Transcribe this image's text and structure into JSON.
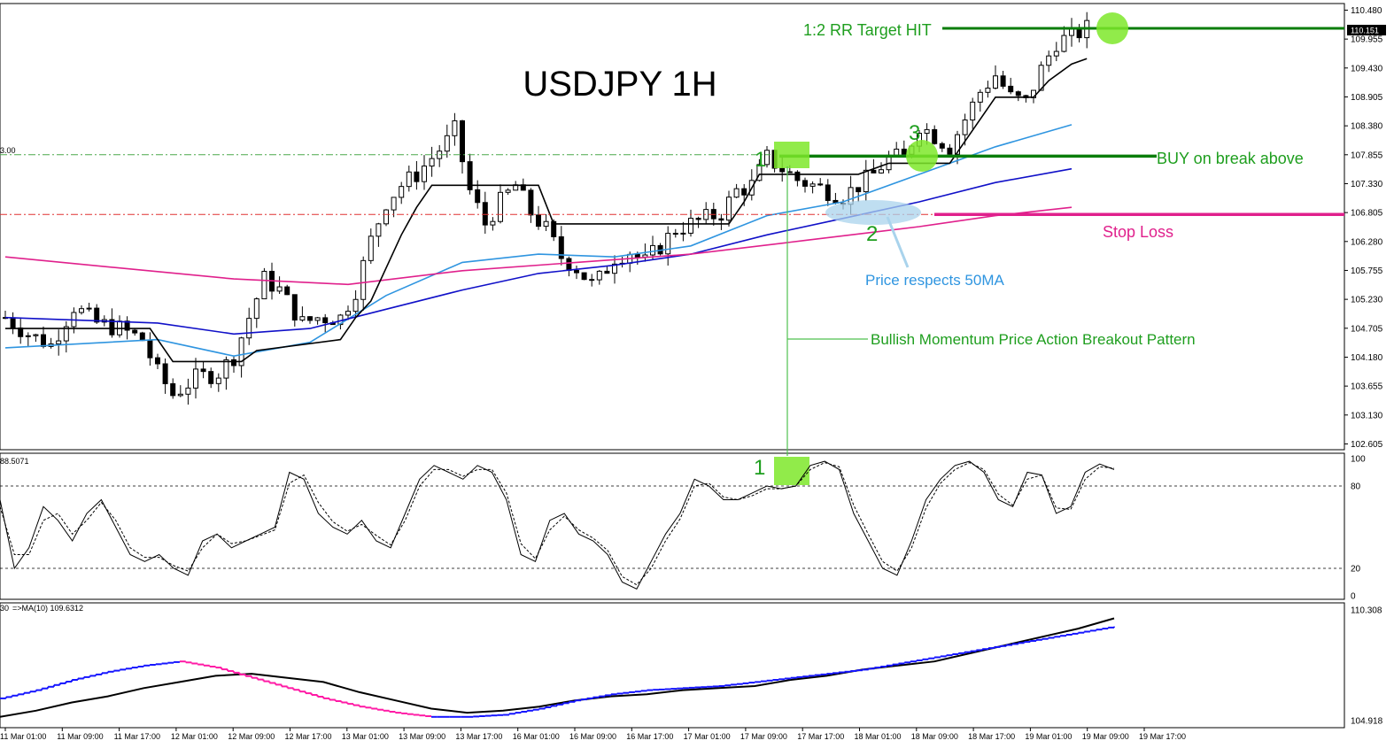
{
  "colors": {
    "background": "#ffffff",
    "candle": "#000000",
    "ma_fast": "#2f95e0",
    "ma_mid": "#1010c8",
    "ma_slow": "#e0208c",
    "level_green": "#0a7d0a",
    "stop_loss": "#e0208c",
    "highlight": "#7ee82a",
    "annotation_green": "#1e9e1e",
    "annotation_blue": "#2f95e0",
    "renko_up": "#1515ff",
    "renko_down": "#ff1aa5"
  },
  "header": {
    "title": "USDJPY 1H"
  },
  "annotations": {
    "target": "1:2 RR Target HIT",
    "buy": "BUY on break above",
    "stop": "Stop Loss",
    "ma_note": "Price respects 50MA",
    "pattern": "Bullish Momentum Price Action Breakout Pattern",
    "point1": "1",
    "point2": "2",
    "point3": "3",
    "osc_point1": "1",
    "left_level_fragment": "3.00",
    "osc_value": "88.5071",
    "lower_label_a": "30",
    "lower_label_b": "=>MA(10) 109.6312"
  },
  "current_price": "110.151",
  "chart_data": [
    {
      "type": "candlestick",
      "title": "USDJPY 1H",
      "y_axis_ticks": [
        "110.480",
        "109.955",
        "109.430",
        "108.905",
        "108.380",
        "107.855",
        "107.330",
        "106.805",
        "106.280",
        "105.755",
        "105.230",
        "104.705",
        "104.180",
        "103.655",
        "103.130",
        "102.605"
      ],
      "ylim": [
        102.5,
        110.6
      ],
      "x_axis_ticks": [
        "11 Mar 01:00",
        "11 Mar 09:00",
        "11 Mar 17:00",
        "12 Mar 01:00",
        "12 Mar 09:00",
        "12 Mar 17:00",
        "13 Mar 01:00",
        "13 Mar 09:00",
        "13 Mar 17:00",
        "16 Mar 01:00",
        "16 Mar 09:00",
        "16 Mar 17:00",
        "17 Mar 01:00",
        "17 Mar 09:00",
        "17 Mar 17:00",
        "18 Mar 01:00",
        "18 Mar 09:00",
        "18 Mar 17:00",
        "19 Mar 01:00",
        "19 Mar 09:00",
        "19 Mar 17:00"
      ],
      "levels": {
        "target": 110.151,
        "buy_break": 107.83,
        "stop_loss": 106.77,
        "left_green_dashdot": 107.855,
        "left_red_dashdot": 106.77
      },
      "close_path": [
        [
          0,
          104.9
        ],
        [
          3,
          104.6
        ],
        [
          6,
          104.4
        ],
        [
          9,
          105.1
        ],
        [
          12,
          104.8
        ],
        [
          15,
          104.7
        ],
        [
          18,
          104.5
        ],
        [
          20,
          103.9
        ],
        [
          22,
          103.5
        ],
        [
          25,
          103.8
        ],
        [
          28,
          103.9
        ],
        [
          30,
          104.2
        ],
        [
          32,
          104.9
        ],
        [
          34,
          105.6
        ],
        [
          36,
          105.4
        ],
        [
          39,
          104.8
        ],
        [
          41,
          104.9
        ],
        [
          44,
          104.9
        ],
        [
          46,
          105.4
        ],
        [
          48,
          106.3
        ],
        [
          50,
          107.0
        ],
        [
          52,
          107.3
        ],
        [
          54,
          107.5
        ],
        [
          56,
          107.8
        ],
        [
          58,
          108.1
        ],
        [
          59,
          108.3
        ],
        [
          61,
          107.2
        ],
        [
          63,
          106.6
        ],
        [
          65,
          107.0
        ],
        [
          67,
          107.3
        ],
        [
          69,
          106.8
        ],
        [
          71,
          106.5
        ],
        [
          73,
          106.0
        ],
        [
          75,
          105.8
        ],
        [
          77,
          105.5
        ],
        [
          78,
          105.6
        ],
        [
          80,
          106.0
        ],
        [
          82,
          106.1
        ],
        [
          84,
          105.9
        ],
        [
          86,
          106.2
        ],
        [
          88,
          106.5
        ],
        [
          90,
          106.6
        ],
        [
          92,
          106.7
        ],
        [
          94,
          106.8
        ],
        [
          96,
          107.2
        ],
        [
          98,
          107.3
        ],
        [
          100,
          107.8
        ],
        [
          102,
          107.6
        ],
        [
          104,
          107.4
        ],
        [
          106,
          107.3
        ],
        [
          108,
          107.2
        ],
        [
          110,
          107.1
        ],
        [
          112,
          107.3
        ],
        [
          114,
          107.5
        ],
        [
          116,
          107.8
        ],
        [
          118,
          107.8
        ],
        [
          120,
          108.4
        ],
        [
          122,
          108.2
        ],
        [
          124,
          108.0
        ],
        [
          126,
          108.5
        ],
        [
          128,
          109.0
        ],
        [
          130,
          109.3
        ],
        [
          132,
          108.9
        ],
        [
          134,
          108.8
        ],
        [
          136,
          109.4
        ],
        [
          138,
          109.9
        ],
        [
          140,
          110.0
        ],
        [
          142,
          110.15
        ]
      ],
      "series": [
        {
          "name": "",
          "color_key": "ma_fast",
          "points": [
            [
              0,
              104.35
            ],
            [
              20,
              104.5
            ],
            [
              30,
              104.2
            ],
            [
              40,
              104.45
            ],
            [
              50,
              105.3
            ],
            [
              60,
              105.9
            ],
            [
              70,
              106.05
            ],
            [
              80,
              106.0
            ],
            [
              90,
              106.2
            ],
            [
              100,
              106.75
            ],
            [
              110,
              107.0
            ],
            [
              120,
              107.5
            ],
            [
              130,
              108.0
            ],
            [
              140,
              108.4
            ]
          ]
        },
        {
          "name": "",
          "color_key": "ma_mid",
          "points": [
            [
              0,
              104.9
            ],
            [
              20,
              104.8
            ],
            [
              30,
              104.6
            ],
            [
              40,
              104.7
            ],
            [
              50,
              105.05
            ],
            [
              60,
              105.4
            ],
            [
              70,
              105.7
            ],
            [
              80,
              105.85
            ],
            [
              90,
              106.05
            ],
            [
              100,
              106.4
            ],
            [
              110,
              106.7
            ],
            [
              120,
              107.0
            ],
            [
              130,
              107.35
            ],
            [
              140,
              107.6
            ]
          ]
        },
        {
          "name": "",
          "color_key": "ma_slow",
          "points": [
            [
              0,
              106.0
            ],
            [
              15,
              105.8
            ],
            [
              30,
              105.6
            ],
            [
              45,
              105.5
            ],
            [
              60,
              105.75
            ],
            [
              75,
              105.9
            ],
            [
              90,
              106.05
            ],
            [
              105,
              106.3
            ],
            [
              120,
              106.55
            ],
            [
              130,
              106.75
            ],
            [
              140,
              106.9
            ]
          ]
        }
      ],
      "trailing_stop": [
        [
          0,
          104.7
        ],
        [
          19,
          104.7
        ],
        [
          22,
          104.1
        ],
        [
          31,
          104.1
        ],
        [
          33,
          104.3
        ],
        [
          44,
          104.5
        ],
        [
          46,
          104.9
        ],
        [
          48,
          105.2
        ],
        [
          50,
          105.8
        ],
        [
          52,
          106.4
        ],
        [
          54,
          106.9
        ],
        [
          56,
          107.3
        ],
        [
          70,
          107.3
        ],
        [
          72,
          106.6
        ],
        [
          95,
          106.6
        ],
        [
          97,
          107.0
        ],
        [
          99,
          107.5
        ],
        [
          112,
          107.5
        ],
        [
          116,
          107.7
        ],
        [
          124,
          107.7
        ],
        [
          126,
          108.1
        ],
        [
          128,
          108.5
        ],
        [
          130,
          108.9
        ],
        [
          135,
          108.9
        ],
        [
          137,
          109.2
        ],
        [
          140,
          109.5
        ],
        [
          142,
          109.6
        ]
      ]
    },
    {
      "type": "line",
      "title": "",
      "y_axis_ticks": [
        "100",
        "80",
        "20",
        "0"
      ],
      "ylim": [
        0,
        100
      ],
      "levels": [
        80,
        20
      ],
      "series": [
        {
          "name": "",
          "values": [
            70,
            20,
            35,
            65,
            55,
            40,
            60,
            70,
            50,
            30,
            25,
            30,
            20,
            15,
            40,
            45,
            35,
            40,
            45,
            50,
            90,
            85,
            60,
            50,
            45,
            55,
            40,
            35,
            60,
            85,
            95,
            90,
            85,
            95,
            90,
            70,
            30,
            25,
            55,
            60,
            45,
            40,
            30,
            10,
            5,
            25,
            45,
            60,
            85,
            80,
            70,
            70,
            75,
            80,
            78,
            80,
            95,
            98,
            92,
            60,
            40,
            20,
            15,
            40,
            70,
            85,
            95,
            98,
            90,
            70,
            65,
            90,
            88,
            60,
            65,
            90,
            96,
            92
          ]
        },
        {
          "name": "",
          "values": [
            65,
            30,
            30,
            55,
            60,
            45,
            55,
            68,
            55,
            35,
            28,
            28,
            22,
            18,
            35,
            45,
            38,
            40,
            44,
            48,
            82,
            88,
            68,
            54,
            47,
            52,
            44,
            37,
            55,
            80,
            92,
            92,
            87,
            92,
            92,
            75,
            38,
            27,
            48,
            58,
            48,
            42,
            33,
            14,
            8,
            20,
            40,
            56,
            80,
            82,
            72,
            70,
            73,
            78,
            78,
            80,
            92,
            97,
            94,
            66,
            45,
            25,
            18,
            35,
            64,
            82,
            92,
            97,
            92,
            74,
            66,
            85,
            88,
            64,
            63,
            85,
            94,
            93
          ]
        }
      ]
    },
    {
      "type": "line",
      "title": "",
      "y_axis_ticks": [
        "110.308",
        "104.918"
      ],
      "ylim": [
        104.918,
        110.308
      ],
      "series": [
        {
          "name": "",
          "values": [
            105.1,
            105.4,
            105.8,
            106.1,
            106.5,
            106.8,
            107.1,
            107.2,
            107.0,
            106.8,
            106.3,
            105.9,
            105.5,
            105.3,
            105.4,
            105.6,
            105.9,
            106.1,
            106.2,
            106.4,
            106.5,
            106.6,
            106.9,
            107.1,
            107.4,
            107.6,
            107.8,
            108.2,
            108.6,
            109.0,
            109.4,
            109.9
          ]
        },
        {
          "name": "",
          "values": [
            106.0,
            106.4,
            106.9,
            107.3,
            107.6,
            107.8,
            107.5,
            107.0,
            106.5,
            106.0,
            105.6,
            105.3,
            105.1,
            105.1,
            105.2,
            105.5,
            105.9,
            106.2,
            106.4,
            106.5,
            106.6,
            106.8,
            107.0,
            107.2,
            107.4,
            107.7,
            108.0,
            108.3,
            108.6,
            108.9,
            109.2,
            109.5
          ]
        }
      ]
    }
  ]
}
